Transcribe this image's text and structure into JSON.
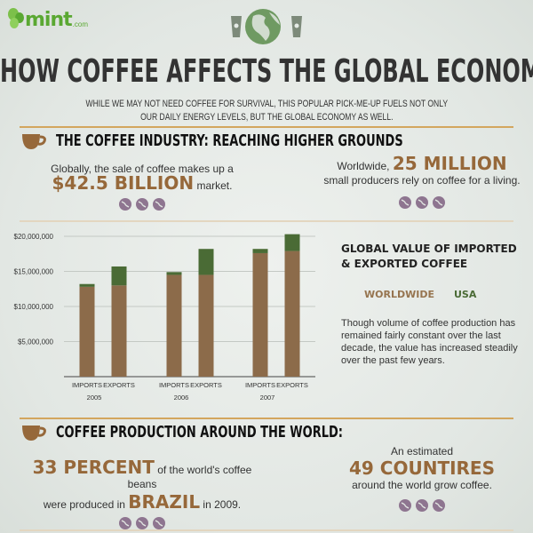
{
  "header": {
    "logo_text": "mint",
    "logo_domain": ".com",
    "title": "HOW COFFEE AFFECTS THE GLOBAL ECONOMY",
    "subtitle_line1": "WHILE WE MAY NOT NEED COFFEE FOR SURVIVAL, THIS POPULAR PICK-ME-UP FUELS NOT ONLY",
    "subtitle_line2": "OUR DAILY ENERGY LEVELS, BUT THE GLOBAL ECONOMY AS WELL."
  },
  "section1": {
    "heading": "THE COFFEE INDUSTRY: REACHING HIGHER GROUNDS",
    "stat_left": {
      "pre": "Globally, the sale of coffee makes up a",
      "big": "$42.5 BILLION",
      "post": "market."
    },
    "stat_right": {
      "pre": "Worldwide,",
      "big": "25 MILLION",
      "post": "small producers rely on coffee for a living."
    }
  },
  "chart_panel": {
    "title_line1": "GLOBAL VALUE OF IMPORTED",
    "title_line2": "& EXPORTED COFFEE",
    "description": "Though volume of coffee production has remained fairly constant over the last decade, the value has increased steadily over the past few years."
  },
  "chart_data": {
    "type": "bar",
    "stacked": true,
    "ylim": [
      0,
      20000000
    ],
    "yticks": [
      "$5,000,000",
      "$10,000,000",
      "$15,000,000",
      "$20,000,000"
    ],
    "ytick_values": [
      5000000,
      10000000,
      15000000,
      20000000
    ],
    "grid": true,
    "groups": [
      "2005",
      "2006",
      "2007"
    ],
    "categories": [
      "IMPORTS",
      "EXPORTS",
      "IMPORTS",
      "EXPORTS",
      "IMPORTS",
      "EXPORTS"
    ],
    "series": [
      {
        "name": "WORLDWIDE",
        "color": "#8c6b4a",
        "values": [
          12800000,
          13000000,
          14500000,
          14500000,
          17600000,
          17900000
        ]
      },
      {
        "name": "USA",
        "color": "#4a6b35",
        "values": [
          400000,
          2700000,
          400000,
          3700000,
          600000,
          2400000
        ]
      }
    ],
    "legend": "right"
  },
  "section2": {
    "heading": "COFFEE PRODUCTION AROUND THE WORLD:",
    "stat_left": {
      "big1": "33 PERCENT",
      "mid": "of the world's coffee beans",
      "pre2": "were produced in",
      "big2": "BRAZIL",
      "post2": "in 2009."
    },
    "stat_right": {
      "pre": "An estimated",
      "big": "49 COUNTIRES",
      "post": "around the world grow coffee."
    }
  },
  "colors": {
    "accent": "#96683a",
    "usa": "#4a6b35",
    "worldwide": "#8c6b4a",
    "rule": "#d3a65e",
    "bean": "#8e7590"
  }
}
